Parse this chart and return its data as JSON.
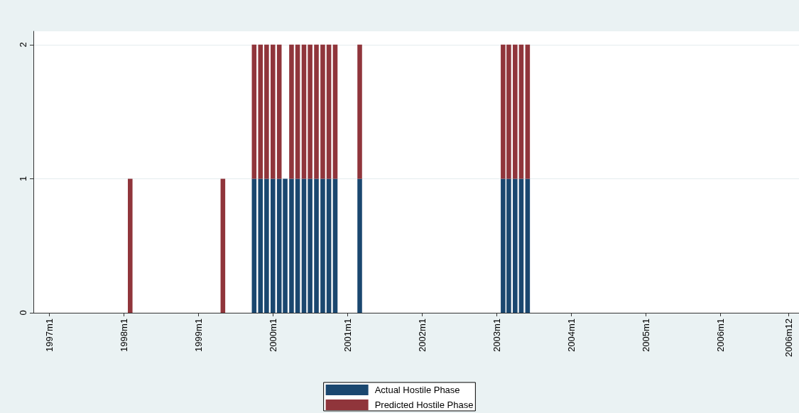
{
  "chart_data": {
    "type": "bar",
    "stacked": true,
    "x": [
      "1998-02",
      "1999-05",
      "1999-10",
      "1999-11",
      "1999-12",
      "2000-01",
      "2000-02",
      "2000-03",
      "2000-04",
      "2000-05",
      "2000-06",
      "2000-07",
      "2000-08",
      "2000-09",
      "2000-10",
      "2000-11",
      "2001-03",
      "2003-02",
      "2003-03",
      "2003-04",
      "2003-05",
      "2003-06"
    ],
    "series": [
      {
        "name": "Actual Hostile Phase",
        "color": "#1a476f",
        "values": [
          0,
          0,
          1,
          1,
          1,
          1,
          1,
          1,
          1,
          1,
          1,
          1,
          1,
          1,
          1,
          1,
          1,
          1,
          1,
          1,
          1,
          1
        ]
      },
      {
        "name": "Predicted Hostile Phase",
        "color": "#90353b",
        "values": [
          1,
          1,
          1,
          1,
          1,
          1,
          1,
          0,
          1,
          1,
          1,
          1,
          1,
          1,
          1,
          1,
          1,
          1,
          1,
          1,
          1,
          1
        ]
      }
    ],
    "xlim": [
      "1996-10-15",
      "2007-01-20"
    ],
    "xticks": [
      {
        "value": "1997-01",
        "label": "1997m1"
      },
      {
        "value": "1998-01",
        "label": "1998m1"
      },
      {
        "value": "1999-01",
        "label": "1999m1"
      },
      {
        "value": "2000-01",
        "label": "2000m1"
      },
      {
        "value": "2001-01",
        "label": "2001m1"
      },
      {
        "value": "2002-01",
        "label": "2002m1"
      },
      {
        "value": "2003-01",
        "label": "2003m1"
      },
      {
        "value": "2004-01",
        "label": "2004m1"
      },
      {
        "value": "2005-01",
        "label": "2005m1"
      },
      {
        "value": "2006-01",
        "label": "2006m1"
      },
      {
        "value": "2006-12",
        "label": "2006m12"
      }
    ],
    "ylim": [
      0,
      2.1
    ],
    "yticks": [
      0,
      1,
      2
    ],
    "grid": "y",
    "legend": "bottom"
  }
}
